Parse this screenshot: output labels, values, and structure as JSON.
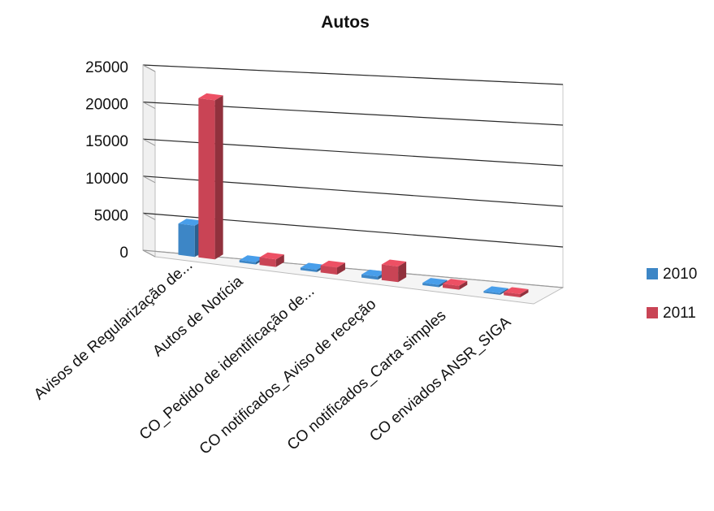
{
  "chart_data": {
    "type": "bar",
    "title": "Autos",
    "xlabel": "",
    "ylabel": "",
    "ylim": [
      0,
      25000
    ],
    "yticks": [
      0,
      5000,
      10000,
      15000,
      20000,
      25000
    ],
    "grid": true,
    "legend_position": "right",
    "categories": [
      "Avisos de Regularização de...",
      "Autos de Notícia",
      "CO_Pedido de identificação de...",
      "CO notificados_Aviso de receção",
      "CO notificados_Carta simples",
      "CO enviados ANSR_SIGA"
    ],
    "series": [
      {
        "name": "2010",
        "color": "#3d86c6",
        "values": [
          4200,
          300,
          300,
          400,
          300,
          200
        ]
      },
      {
        "name": "2011",
        "color": "#c94455",
        "values": [
          21300,
          1000,
          900,
          2000,
          500,
          400
        ]
      }
    ]
  }
}
